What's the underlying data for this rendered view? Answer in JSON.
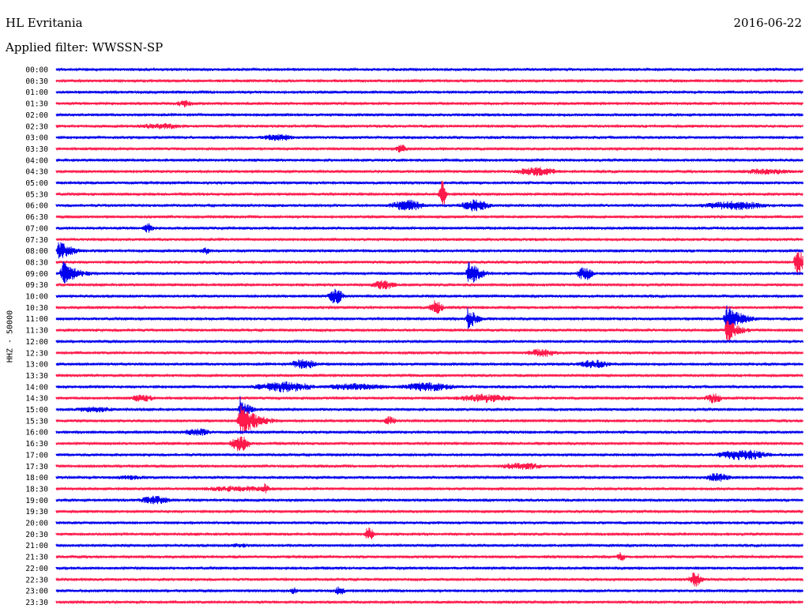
{
  "header": {
    "station": "HL Evritania",
    "date": "2016-06-22",
    "filter": "Applied filter: WWSSN-SP"
  },
  "chart_data": {
    "type": "line",
    "ylabel": "HHZ - 50000",
    "colors": [
      "#0000ee",
      "#ff1a4b"
    ],
    "rows": [
      {
        "time": "00:00",
        "events": []
      },
      {
        "time": "00:30",
        "events": []
      },
      {
        "time": "01:00",
        "events": []
      },
      {
        "time": "01:30",
        "events": []
      },
      {
        "time": "02:00",
        "events": []
      },
      {
        "time": "02:30",
        "events": []
      },
      {
        "time": "03:00",
        "events": []
      },
      {
        "time": "03:30",
        "events": []
      },
      {
        "time": "04:00",
        "events": []
      },
      {
        "time": "04:30",
        "events": []
      },
      {
        "time": "05:00",
        "events": []
      },
      {
        "time": "05:30",
        "events": []
      },
      {
        "time": "06:00",
        "events": []
      },
      {
        "time": "06:30",
        "events": []
      },
      {
        "time": "07:00",
        "events": []
      },
      {
        "time": "07:30",
        "events": []
      },
      {
        "time": "08:00",
        "events": []
      },
      {
        "time": "08:30",
        "events": []
      },
      {
        "time": "09:00",
        "events": []
      },
      {
        "time": "09:30",
        "events": []
      },
      {
        "time": "10:00",
        "events": []
      },
      {
        "time": "10:30",
        "events": []
      },
      {
        "time": "11:00",
        "events": []
      },
      {
        "time": "11:30",
        "events": []
      },
      {
        "time": "12:00",
        "events": []
      },
      {
        "time": "12:30",
        "events": []
      },
      {
        "time": "13:00",
        "events": []
      },
      {
        "time": "13:30",
        "events": []
      },
      {
        "time": "14:00",
        "events": []
      },
      {
        "time": "14:30",
        "events": []
      },
      {
        "time": "15:00",
        "events": []
      },
      {
        "time": "15:30",
        "events": []
      },
      {
        "time": "16:00",
        "events": []
      },
      {
        "time": "16:30",
        "events": []
      },
      {
        "time": "17:00",
        "events": []
      },
      {
        "time": "17:30",
        "events": []
      },
      {
        "time": "18:00",
        "events": []
      },
      {
        "time": "18:30",
        "events": []
      },
      {
        "time": "19:00",
        "events": []
      },
      {
        "time": "19:30",
        "events": []
      },
      {
        "time": "20:00",
        "events": []
      },
      {
        "time": "20:30",
        "events": []
      },
      {
        "time": "21:00",
        "events": []
      },
      {
        "time": "21:30",
        "events": []
      },
      {
        "time": "22:00",
        "events": []
      },
      {
        "time": "22:30",
        "events": []
      },
      {
        "time": "23:00",
        "events": []
      },
      {
        "time": "23:30",
        "events": []
      }
    ]
  }
}
